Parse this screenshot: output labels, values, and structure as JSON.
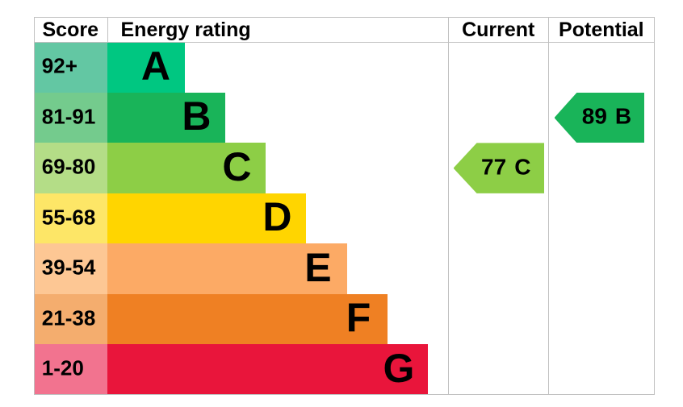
{
  "chart_data": {
    "type": "bar",
    "title": "Energy rating",
    "headers": [
      "Score",
      "Energy rating",
      "Current",
      "Potential"
    ],
    "bands": [
      {
        "score": "92+",
        "letter": "A",
        "color": "#00c781",
        "score_tint": "#63c7a3"
      },
      {
        "score": "81-91",
        "letter": "B",
        "color": "#19b459",
        "score_tint": "#74cb8d"
      },
      {
        "score": "69-80",
        "letter": "C",
        "color": "#8dce46",
        "score_tint": "#b4dd87"
      },
      {
        "score": "55-68",
        "letter": "D",
        "color": "#ffd500",
        "score_tint": "#fde667"
      },
      {
        "score": "39-54",
        "letter": "E",
        "color": "#fcaa65",
        "score_tint": "#fdc794"
      },
      {
        "score": "21-38",
        "letter": "F",
        "color": "#ef8023",
        "score_tint": "#f4ad6e"
      },
      {
        "score": "1-20",
        "letter": "G",
        "color": "#e9153b",
        "score_tint": "#f2738f"
      }
    ],
    "current": {
      "value": "77",
      "band": "C",
      "arrow_color": "#8dce46"
    },
    "potential": {
      "value": "89",
      "band": "B",
      "arrow_color": "#19b459"
    },
    "legend_position": "none",
    "grid": false
  }
}
